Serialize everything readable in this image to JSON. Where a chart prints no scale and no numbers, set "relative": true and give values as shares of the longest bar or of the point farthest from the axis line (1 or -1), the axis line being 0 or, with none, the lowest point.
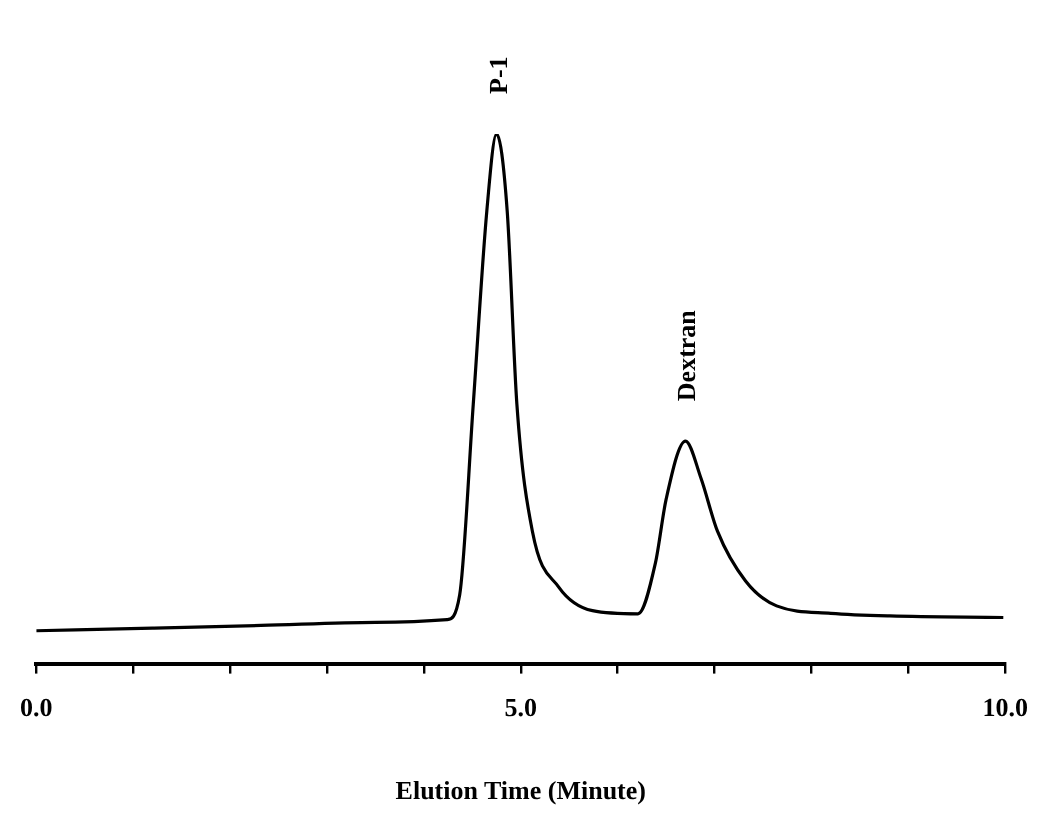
{
  "chart_data": {
    "type": "line",
    "relative": true,
    "xlabel": "Elution Time (Minute)",
    "x": [
      0,
      1.2,
      2.32,
      3.5,
      4.24,
      4.37,
      4.51,
      4.65,
      4.75,
      4.86,
      4.96,
      5.12,
      5.39,
      5.74,
      6.21,
      6.39,
      6.5,
      6.7,
      6.86,
      7.03,
      7.32,
      7.64,
      8.2,
      8.81,
      9.98
    ],
    "series": [
      {
        "color": "#000000",
        "values": [
          0.062,
          0.067,
          0.072,
          0.078,
          0.083,
          0.13,
          0.49,
          0.855,
          1,
          0.855,
          0.49,
          0.25,
          0.145,
          0.1,
          0.094,
          0.19,
          0.31,
          0.42,
          0.35,
          0.25,
          0.156,
          0.109,
          0.095,
          0.09,
          0.087
        ]
      }
    ],
    "xlim": [
      0,
      10
    ],
    "xticks": [
      {
        "value": 0,
        "label": "0.0"
      },
      {
        "value": 1,
        "label": null
      },
      {
        "value": 2,
        "label": null
      },
      {
        "value": 3,
        "label": null
      },
      {
        "value": 4,
        "label": null
      },
      {
        "value": 5,
        "label": "5.0"
      },
      {
        "value": 6,
        "label": null
      },
      {
        "value": 7,
        "label": null
      },
      {
        "value": 8,
        "label": null
      },
      {
        "value": 9,
        "label": null
      },
      {
        "value": 10,
        "label": "10.0"
      }
    ],
    "annotations": [
      {
        "text": "P-1",
        "x": 4.75,
        "y": 1
      },
      {
        "text": "Dextran",
        "x": 6.7,
        "y": 0.42
      }
    ],
    "grid": false,
    "legend": false,
    "marker": "none",
    "line_style": "solid"
  }
}
